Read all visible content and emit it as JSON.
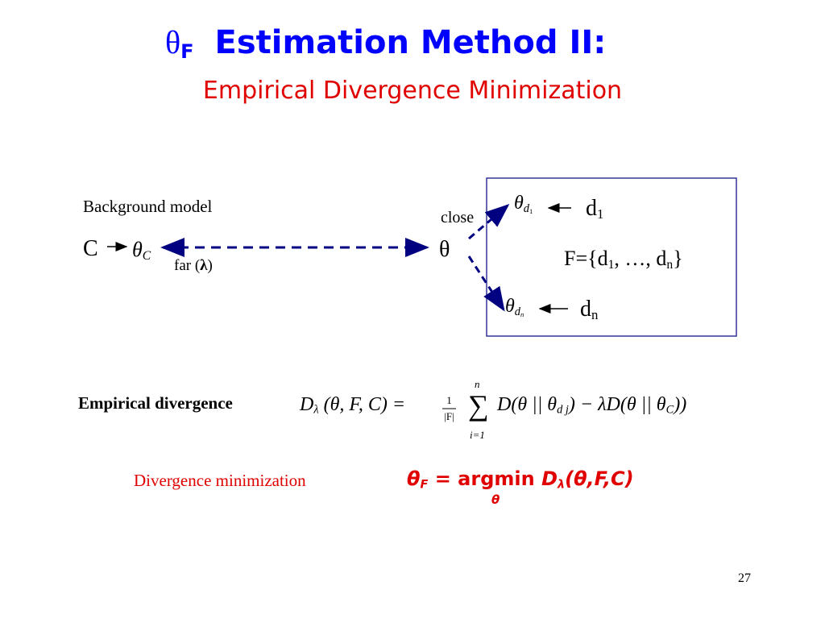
{
  "title": {
    "symbol": "θ",
    "subscript": "F",
    "text": "Estimation Method II:"
  },
  "subtitle": "Empirical Divergence Minimization",
  "diagram": {
    "background_label": "Background model",
    "c_label": "C",
    "theta_c": {
      "symbol": "θ",
      "subscript": "C"
    },
    "far": {
      "open": "far (",
      "lambda": "λ",
      "close": ")"
    },
    "close_label": "close",
    "theta": "θ",
    "theta_d1": {
      "symbol": "θ",
      "subscript": "d",
      "subsub": "1"
    },
    "d1": {
      "symbol": "d",
      "subscript": "1"
    },
    "set": {
      "start": "F={d",
      "sub1": "1",
      "middle": ", …, d",
      "subn": "n",
      "end": "}"
    },
    "theta_dn": {
      "symbol": "θ",
      "subscript": "d",
      "subsub": "n"
    },
    "dn": {
      "symbol": "d",
      "subscript": "n"
    }
  },
  "divergence": {
    "label": "Empirical divergence",
    "lhs": "D",
    "lhs_sub": "λ",
    "args": "(θ, F, C) =",
    "frac_num": "1",
    "frac_den": "|F|",
    "sum": "∑",
    "sum_top": "n",
    "sum_bottom": "i=1",
    "term1": "D(θ || θ",
    "term1_sub": "d j",
    "minus": ") − λD(θ || θ",
    "term2_sub": "C",
    "end": "))"
  },
  "minimization": {
    "label": "Divergence minimization",
    "lhs": "θ",
    "lhs_sub": "F",
    "op": "= argmin",
    "d": "D",
    "d_sub": "λ",
    "args": "(θ,F,C)",
    "under": "θ"
  },
  "page_number": "27"
}
